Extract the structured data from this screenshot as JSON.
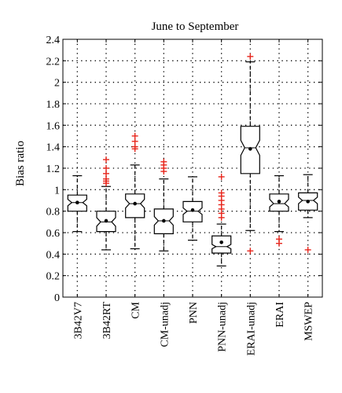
{
  "chart_data": {
    "type": "boxplot",
    "title": "June to September",
    "xlabel": "",
    "ylabel": "Bias ratio",
    "ylim": [
      0,
      2.4
    ],
    "yticks": [
      0,
      0.2,
      0.4,
      0.6,
      0.8,
      1,
      1.2,
      1.4,
      1.6,
      1.8,
      2,
      2.2,
      2.4
    ],
    "ytick_labels": [
      "0",
      "0.2",
      "0.4",
      "0.6",
      "0.8",
      "1",
      "1.2",
      "1.4",
      "1.6",
      "1.8",
      "2",
      "2.2",
      "2.4"
    ],
    "grid": true,
    "notched": true,
    "colors": {
      "box": "#000000",
      "outlier": "#e8261c",
      "grid": "#000000"
    },
    "categories": [
      "3B42V7",
      "3B42RT",
      "CM",
      "CM-unadj",
      "PNN",
      "PNN-unadj",
      "ERAI-unadj",
      "ERAI",
      "MSWEP"
    ],
    "boxes": [
      {
        "whisker_low": 0.61,
        "q1": 0.8,
        "median": 0.88,
        "q3": 0.95,
        "whisker_high": 1.13,
        "mean": 0.88,
        "notch_low": 0.85,
        "notch_high": 0.91,
        "outliers": []
      },
      {
        "whisker_low": 0.44,
        "q1": 0.61,
        "median": 0.7,
        "q3": 0.8,
        "whisker_high": 1.03,
        "mean": 0.71,
        "notch_low": 0.66,
        "notch_high": 0.74,
        "outliers": [
          1.06,
          1.08,
          1.1,
          1.15,
          1.2,
          1.28
        ]
      },
      {
        "whisker_low": 0.45,
        "q1": 0.74,
        "median": 0.87,
        "q3": 0.96,
        "whisker_high": 1.23,
        "mean": 0.87,
        "notch_low": 0.83,
        "notch_high": 0.91,
        "outliers": [
          1.38,
          1.4,
          1.45,
          1.5
        ]
      },
      {
        "whisker_low": 0.43,
        "q1": 0.59,
        "median": 0.71,
        "q3": 0.82,
        "whisker_high": 1.1,
        "mean": 0.71,
        "notch_low": 0.67,
        "notch_high": 0.75,
        "outliers": [
          1.17,
          1.2,
          1.23,
          1.26
        ]
      },
      {
        "whisker_low": 0.53,
        "q1": 0.7,
        "median": 0.8,
        "q3": 0.89,
        "whisker_high": 1.12,
        "mean": 0.81,
        "notch_low": 0.77,
        "notch_high": 0.83,
        "outliers": []
      },
      {
        "whisker_low": 0.29,
        "q1": 0.41,
        "median": 0.47,
        "q3": 0.57,
        "whisker_high": 0.68,
        "mean": 0.51,
        "notch_low": 0.45,
        "notch_high": 0.49,
        "outliers": [
          0.74,
          0.78,
          0.82,
          0.86,
          0.9,
          0.94,
          0.97,
          1.12
        ]
      },
      {
        "whisker_low": 0.62,
        "q1": 1.15,
        "median": 1.39,
        "q3": 1.59,
        "whisker_high": 2.19,
        "mean": 1.38,
        "notch_low": 1.32,
        "notch_high": 1.46,
        "outliers": [
          0.43,
          2.24
        ]
      },
      {
        "whisker_low": 0.61,
        "q1": 0.8,
        "median": 0.87,
        "q3": 0.96,
        "whisker_high": 1.13,
        "mean": 0.89,
        "notch_low": 0.84,
        "notch_high": 0.91,
        "outliers": [
          0.5,
          0.54
        ]
      },
      {
        "whisker_low": 0.74,
        "q1": 0.81,
        "median": 0.9,
        "q3": 0.97,
        "whisker_high": 1.14,
        "mean": 0.89,
        "notch_low": 0.87,
        "notch_high": 0.93,
        "outliers": [
          0.44
        ]
      }
    ]
  }
}
